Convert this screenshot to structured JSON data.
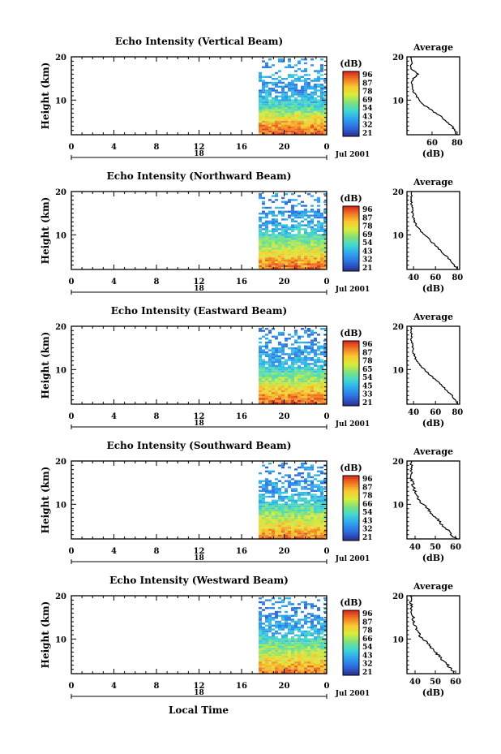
{
  "figure": {
    "bottom_xlabel": "Local Time"
  },
  "colorbar_ticks": [
    "96",
    "87",
    "78",
    "69",
    "54",
    "43",
    "32",
    "21"
  ],
  "chart_data": [
    {
      "type": "heatmap",
      "title": "Echo Intensity (Vertical Beam)",
      "ylabel": "Height (km)",
      "ylim": [
        2,
        20
      ],
      "yticks": [
        "20",
        "10"
      ],
      "xlim": [
        0,
        24
      ],
      "xticks": [
        "0",
        "4",
        "8",
        "12",
        "16",
        "20",
        "0"
      ],
      "date_label": "18",
      "month_label": "Jul 2001",
      "colorbar": {
        "unit": "(dB)",
        "ticks": [
          "96",
          "87",
          "78",
          "69",
          "54",
          "43",
          "32",
          "21"
        ]
      },
      "data_start_hour": 17.6,
      "data_end_hour": 24,
      "profile": {
        "title": "Average",
        "xlabel": "(dB)",
        "xticks": [
          "60",
          "80"
        ],
        "xlim": [
          40,
          82
        ],
        "ylim": [
          2,
          20
        ],
        "yticks": [
          "20",
          "10"
        ],
        "heights": [
          2,
          3,
          4,
          5,
          6,
          7,
          8,
          9,
          10,
          11,
          12,
          13,
          14,
          15,
          16,
          17,
          18,
          19,
          20
        ],
        "values": [
          80,
          78,
          76,
          72,
          68,
          63,
          58,
          53,
          50,
          47,
          45,
          44,
          44,
          45,
          49,
          44,
          43,
          44,
          43
        ]
      }
    },
    {
      "type": "heatmap",
      "title": "Echo Intensity (Northward Beam)",
      "ylabel": "Height (km)",
      "ylim": [
        2,
        20
      ],
      "yticks": [
        "20",
        "10"
      ],
      "xlim": [
        0,
        24
      ],
      "xticks": [
        "0",
        "4",
        "8",
        "12",
        "16",
        "20",
        "0"
      ],
      "date_label": "18",
      "month_label": "Jul 2001",
      "colorbar": {
        "unit": "(dB)",
        "ticks": [
          "96",
          "87",
          "78",
          "69",
          "54",
          "43",
          "32",
          "21"
        ]
      },
      "data_start_hour": 17.6,
      "data_end_hour": 24,
      "profile": {
        "title": "Average",
        "xlabel": "(dB)",
        "xticks": [
          "40",
          "60",
          "80"
        ],
        "xlim": [
          34,
          82
        ],
        "ylim": [
          2,
          20
        ],
        "yticks": [
          "20",
          "10"
        ],
        "heights": [
          2,
          3,
          4,
          5,
          6,
          7,
          8,
          9,
          10,
          11,
          12,
          13,
          14,
          15,
          16,
          17,
          18,
          19,
          20
        ],
        "values": [
          80,
          77,
          74,
          70,
          66,
          62,
          58,
          54,
          50,
          46,
          43,
          41,
          40,
          39,
          39,
          38,
          38,
          38,
          38
        ]
      }
    },
    {
      "type": "heatmap",
      "title": "Echo Intensity (Eastward Beam)",
      "ylabel": "Height (km)",
      "ylim": [
        2,
        20
      ],
      "yticks": [
        "20",
        "10"
      ],
      "xlim": [
        0,
        24
      ],
      "xticks": [
        "0",
        "4",
        "8",
        "12",
        "16",
        "20",
        "0"
      ],
      "date_label": "18",
      "month_label": "Jul 2001",
      "colorbar": {
        "unit": "(dB)",
        "ticks": [
          "96",
          "87",
          "78",
          "65",
          "54",
          "45",
          "33",
          "21"
        ]
      },
      "data_start_hour": 17.6,
      "data_end_hour": 24,
      "profile": {
        "title": "Average",
        "xlabel": "(dB)",
        "xticks": [
          "40",
          "60",
          "80"
        ],
        "xlim": [
          34,
          82
        ],
        "ylim": [
          2,
          20
        ],
        "yticks": [
          "20",
          "10"
        ],
        "heights": [
          2,
          3,
          4,
          5,
          6,
          7,
          8,
          9,
          10,
          11,
          12,
          13,
          14,
          15,
          16,
          17,
          18,
          19,
          20
        ],
        "values": [
          80,
          78,
          75,
          71,
          67,
          63,
          58,
          54,
          50,
          46,
          43,
          41,
          40,
          39,
          39,
          38,
          38,
          38,
          38
        ]
      }
    },
    {
      "type": "heatmap",
      "title": "Echo Intensity (Southward Beam)",
      "ylabel": "Height (km)",
      "ylim": [
        2,
        20
      ],
      "yticks": [
        "20",
        "10"
      ],
      "xlim": [
        0,
        24
      ],
      "xticks": [
        "0",
        "4",
        "8",
        "12",
        "16",
        "20",
        "0"
      ],
      "date_label": "18",
      "month_label": "Jul 2001",
      "colorbar": {
        "unit": "(dB)",
        "ticks": [
          "96",
          "87",
          "78",
          "66",
          "54",
          "43",
          "32",
          "21"
        ]
      },
      "data_start_hour": 17.6,
      "data_end_hour": 24,
      "profile": {
        "title": "Average",
        "xlabel": "(dB)",
        "xticks": [
          "40",
          "50",
          "60"
        ],
        "xlim": [
          36,
          62
        ],
        "ylim": [
          2,
          20
        ],
        "yticks": [
          "20",
          "10"
        ],
        "heights": [
          2,
          3,
          4,
          5,
          6,
          7,
          8,
          9,
          10,
          11,
          12,
          13,
          14,
          15,
          16,
          17,
          18,
          19,
          20
        ],
        "values": [
          60,
          58,
          56,
          54,
          52,
          50,
          48,
          46,
          44,
          42,
          41,
          40,
          39,
          39,
          38,
          38,
          38,
          38,
          38
        ]
      }
    },
    {
      "type": "heatmap",
      "title": "Echo Intensity (Westward Beam)",
      "ylabel": "Height (km)",
      "ylim": [
        2,
        20
      ],
      "yticks": [
        "20",
        "10"
      ],
      "xlim": [
        0,
        24
      ],
      "xticks": [
        "0",
        "4",
        "8",
        "12",
        "16",
        "20",
        "0"
      ],
      "date_label": "18",
      "month_label": "Jul 2001",
      "colorbar": {
        "unit": "(dB)",
        "ticks": [
          "96",
          "87",
          "78",
          "66",
          "54",
          "43",
          "32",
          "21"
        ]
      },
      "data_start_hour": 17.6,
      "data_end_hour": 24,
      "profile": {
        "title": "Average",
        "xlabel": "(dB)",
        "xticks": [
          "40",
          "50",
          "60"
        ],
        "xlim": [
          36,
          62
        ],
        "ylim": [
          2,
          20
        ],
        "yticks": [
          "20",
          "10"
        ],
        "heights": [
          2,
          3,
          4,
          5,
          6,
          7,
          8,
          9,
          10,
          11,
          12,
          13,
          14,
          15,
          16,
          17,
          18,
          19,
          20
        ],
        "values": [
          60,
          58,
          56,
          54,
          52,
          50,
          48,
          46,
          44,
          42,
          41,
          40,
          39,
          39,
          38,
          38,
          38,
          38,
          38
        ]
      }
    }
  ]
}
